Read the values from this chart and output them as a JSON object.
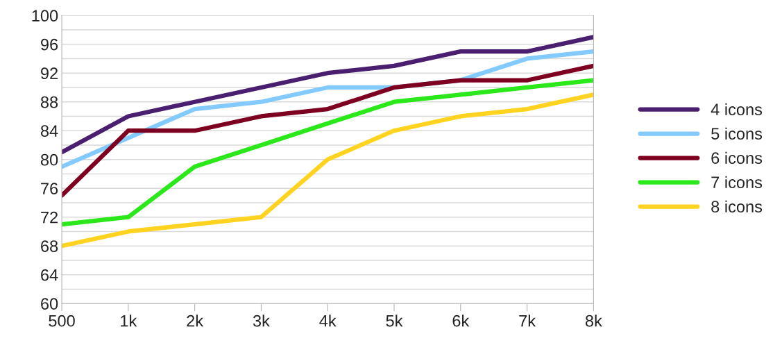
{
  "chart_data": {
    "type": "line",
    "categories": [
      "500",
      "1k",
      "2k",
      "3k",
      "4k",
      "5k",
      "6k",
      "7k",
      "8k"
    ],
    "series": [
      {
        "name": "4 icons",
        "color": "#4b1f6f",
        "values": [
          81,
          86,
          88,
          90,
          92,
          93,
          95,
          95,
          97
        ]
      },
      {
        "name": "5 icons",
        "color": "#83caff",
        "values": [
          79,
          83,
          87,
          88,
          90,
          90,
          91,
          94,
          95
        ]
      },
      {
        "name": "6 icons",
        "color": "#7e0021",
        "values": [
          75,
          84,
          84,
          86,
          87,
          90,
          91,
          91,
          93
        ]
      },
      {
        "name": "7 icons",
        "color": "#2ae81a",
        "values": [
          71,
          72,
          79,
          82,
          85,
          88,
          89,
          90,
          91
        ]
      },
      {
        "name": "8 icons",
        "color": "#ffd320",
        "values": [
          68,
          70,
          71,
          72,
          80,
          84,
          86,
          87,
          89
        ]
      }
    ],
    "ylim": [
      60,
      100
    ],
    "yticks": [
      60,
      {
        "value": 62,
        "label": null
      },
      64,
      {
        "value": 66,
        "label": null
      },
      68,
      {
        "value": 70,
        "label": null
      },
      72,
      {
        "value": 74,
        "label": null
      },
      76,
      {
        "value": 78,
        "label": null
      },
      80,
      {
        "value": 82,
        "label": null
      },
      84,
      {
        "value": 86,
        "label": null
      },
      88,
      {
        "value": 90,
        "label": null
      },
      92,
      {
        "value": 94,
        "label": null
      },
      96,
      {
        "value": 98,
        "label": null
      },
      100
    ],
    "grid": "y",
    "legend": "right",
    "marker": "none",
    "line_style": "solid"
  }
}
